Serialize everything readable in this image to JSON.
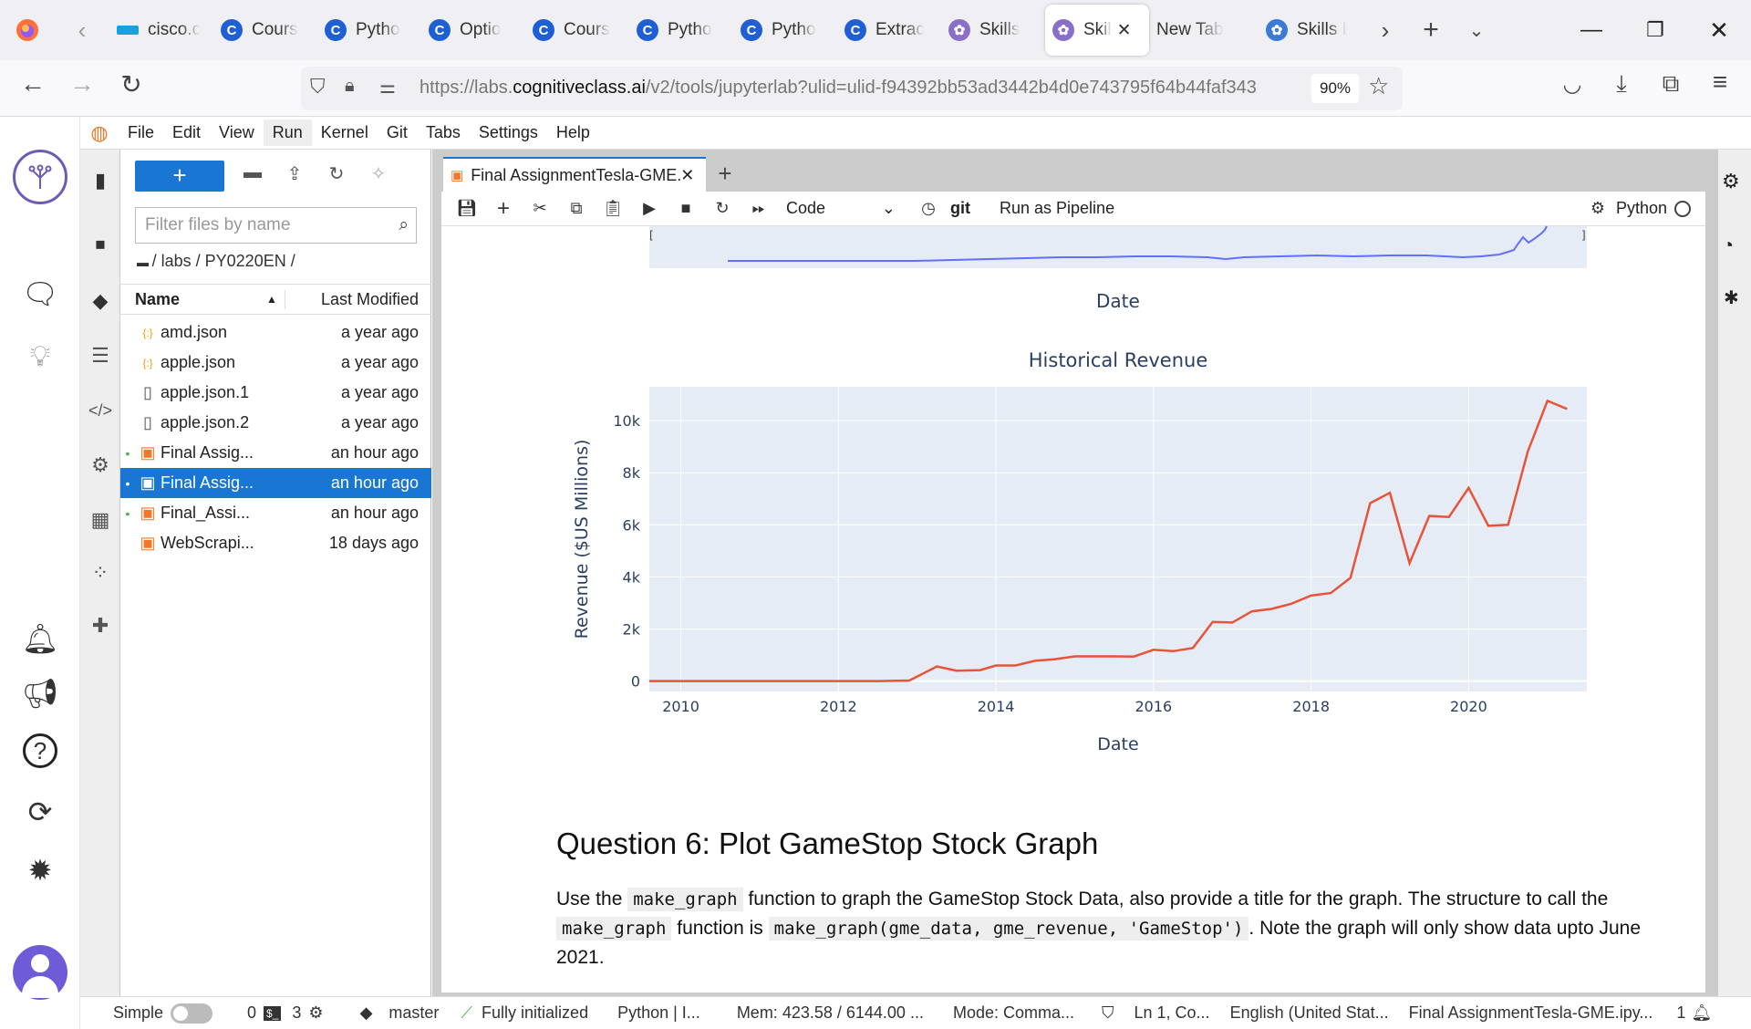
{
  "browser": {
    "tabs": [
      {
        "label": "cisco.c",
        "icon": "cisco-icon",
        "color": "#1ba0d7"
      },
      {
        "label": "Cours",
        "icon": "coursera-icon",
        "color": "#1f5fd6"
      },
      {
        "label": "Pytho",
        "icon": "coursera-icon",
        "color": "#1f5fd6"
      },
      {
        "label": "Optio",
        "icon": "coursera-icon",
        "color": "#1f5fd6"
      },
      {
        "label": "Cours",
        "icon": "coursera-icon",
        "color": "#1f5fd6"
      },
      {
        "label": "Pytho",
        "icon": "coursera-icon",
        "color": "#1f5fd6"
      },
      {
        "label": "Pytho",
        "icon": "coursera-icon",
        "color": "#1f5fd6"
      },
      {
        "label": "Extrac",
        "icon": "coursera-icon",
        "color": "#1f5fd6"
      },
      {
        "label": "Skills",
        "icon": "skills-icon",
        "color": "#8a6fc9"
      },
      {
        "label": "Skil",
        "icon": "skills-icon",
        "color": "#8a6fc9",
        "active": true
      },
      {
        "label": "New Tab",
        "icon": "",
        "color": ""
      },
      {
        "label": "Skills I",
        "icon": "skills-network-icon",
        "color": "#3a7bd5"
      }
    ],
    "url_prefix": "https://labs.",
    "url_domain": "cognitiveclass.ai",
    "url_rest": "/v2/tools/jupyterlab?ulid=ulid-f94392bb53ad3442b4d0e743795f64b44faf343",
    "zoom": "90%"
  },
  "menu": [
    "File",
    "Edit",
    "View",
    "Run",
    "Kernel",
    "Git",
    "Tabs",
    "Settings",
    "Help"
  ],
  "filebrowser": {
    "new_label": "+",
    "filter_placeholder": "Filter files by name",
    "breadcrumb": "/ labs / PY0220EN /",
    "col_name": "Name",
    "col_modified": "Last Modified",
    "files": [
      {
        "name": "amd.json",
        "modified": "a year ago",
        "icon": "json-icon",
        "running": false
      },
      {
        "name": "apple.json",
        "modified": "a year ago",
        "icon": "json-icon",
        "running": false
      },
      {
        "name": "apple.json.1",
        "modified": "a year ago",
        "icon": "file-icon",
        "running": false
      },
      {
        "name": "apple.json.2",
        "modified": "a year ago",
        "icon": "file-icon",
        "running": false
      },
      {
        "name": "Final Assig...",
        "modified": "an hour ago",
        "icon": "notebook-icon",
        "running": true
      },
      {
        "name": "Final Assig...",
        "modified": "an hour ago",
        "icon": "notebook-icon",
        "running": true,
        "selected": true
      },
      {
        "name": "Final_Assi...",
        "modified": "an hour ago",
        "icon": "notebook-icon",
        "running": true
      },
      {
        "name": "WebScrapi...",
        "modified": "18 days ago",
        "icon": "notebook-icon",
        "running": false
      }
    ]
  },
  "notebook": {
    "tab_title": "Final AssignmentTesla-GME.",
    "cell_type": "Code",
    "git_label": "git",
    "pipeline_label": "Run as Pipeline",
    "kernel": "Python",
    "top_chart_xlabel": "Date",
    "question_heading": "Question 6: Plot GameStop Stock Graph",
    "para_part1": "Use the",
    "para_code1": "make_graph",
    "para_part2": "function to graph the GameStop Stock Data, also provide a title for the graph. The structure to call the",
    "para_code2": "make_graph",
    "para_part3": "function is",
    "para_code3": "make_graph(gme_data, gme_revenue, 'GameStop')",
    "para_part4": ". Note the graph will only show data upto June 2021."
  },
  "chart_data": {
    "type": "line",
    "title": "Historical Revenue",
    "xlabel": "Date",
    "ylabel": "Revenue ($US Millions)",
    "xlim": [
      2009.6,
      2021.5
    ],
    "ylim": [
      -400,
      11300
    ],
    "x_ticks": [
      "2010",
      "2012",
      "2014",
      "2016",
      "2018",
      "2020"
    ],
    "y_ticks": [
      "0",
      "2k",
      "4k",
      "6k",
      "8k",
      "10k"
    ],
    "line_color": "#e8533a",
    "plot_bg": "#e5ecf6",
    "series": [
      {
        "x": [
          2009.6,
          2010.5,
          2011.5,
          2012.5,
          2012.9,
          2013.25,
          2013.5,
          2013.8,
          2014.0,
          2014.25,
          2014.5,
          2014.75,
          2015.0,
          2015.5,
          2015.75,
          2016.0,
          2016.25,
          2016.5,
          2016.75,
          2017.0,
          2017.25,
          2017.5,
          2017.75,
          2018.0,
          2018.25,
          2018.5,
          2018.75,
          2019.0,
          2019.25,
          2019.5,
          2019.75,
          2020.0,
          2020.25,
          2020.5,
          2020.75,
          2021.0,
          2021.25
        ],
        "y": [
          0,
          0,
          0,
          0,
          20,
          560,
          400,
          420,
          600,
          600,
          780,
          840,
          950,
          950,
          940,
          1200,
          1150,
          1270,
          2270,
          2250,
          2680,
          2770,
          2970,
          3280,
          3380,
          3960,
          6830,
          7230,
          4530,
          6340,
          6300,
          7420,
          5960,
          6000,
          8810,
          10760,
          10450
        ]
      }
    ]
  },
  "statusbar": {
    "mode": "Simple",
    "terminals": "0",
    "kernels": "3",
    "branch": "master",
    "init": "Fully initialized",
    "kernel": "Python | I...",
    "mem": "Mem: 423.58 / 6144.00 ...",
    "cmdmode": "Mode: Comma...",
    "cursor": "Ln 1, Co...",
    "lang": "English (United Stat...",
    "file": "Final AssignmentTesla-GME.ipy...",
    "count": "1"
  }
}
